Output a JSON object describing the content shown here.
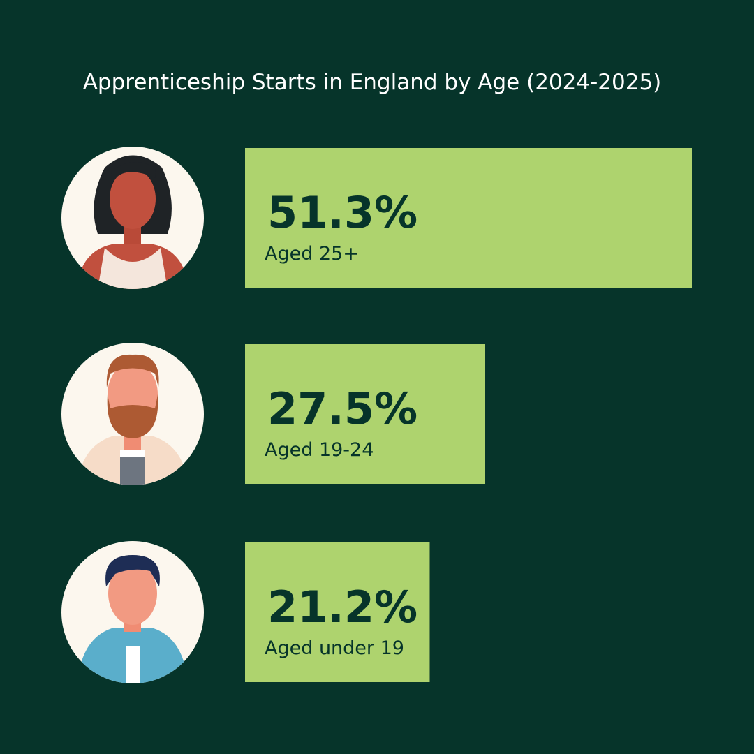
{
  "chart_data": {
    "type": "bar",
    "orientation": "horizontal",
    "title": "Apprenticeship Starts in England by Age (2024-2025)",
    "categories": [
      "Aged 25+",
      "Aged 19-24",
      "Aged under 19"
    ],
    "values": [
      51.3,
      27.5,
      21.2
    ],
    "value_labels": [
      "51.3%",
      "27.5%",
      "21.2%"
    ],
    "color": "#aed36e"
  }
}
